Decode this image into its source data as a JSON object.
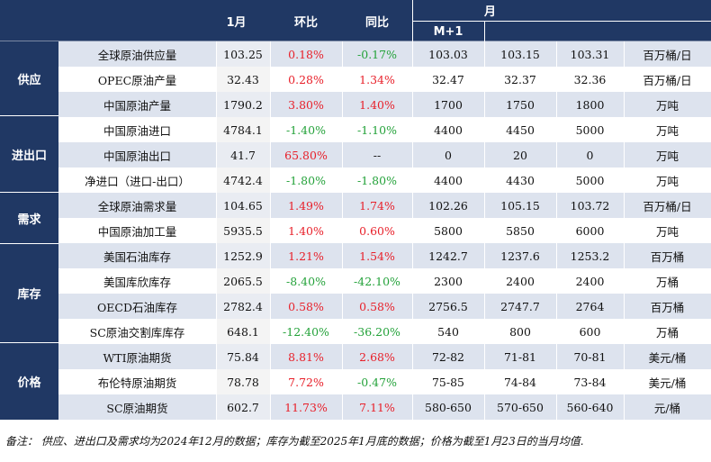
{
  "header": {
    "month": "1月",
    "mom": "环比",
    "yoy": "同比",
    "forecast_group": "月",
    "m1": "M+1"
  },
  "categories": [
    {
      "key": "supply",
      "label": "供应"
    },
    {
      "key": "trade",
      "label": "进出口"
    },
    {
      "key": "demand",
      "label": "需求"
    },
    {
      "key": "inventory",
      "label": "库存"
    },
    {
      "key": "price",
      "label": "价格"
    }
  ],
  "rows": [
    {
      "item": "全球原油供应量",
      "m": "103.25",
      "mom": "0.18%",
      "mom_color": "red",
      "yoy": "-0.17%",
      "yoy_color": "green",
      "f1": "103.03",
      "f2": "103.15",
      "f3": "103.31",
      "unit": "百万桶/日"
    },
    {
      "item": "OPEC原油产量",
      "m": "32.43",
      "mom": "0.28%",
      "mom_color": "red",
      "yoy": "1.34%",
      "yoy_color": "red",
      "f1": "32.47",
      "f2": "32.37",
      "f3": "32.36",
      "unit": "百万桶/日"
    },
    {
      "item": "中国原油产量",
      "m": "1790.2",
      "mom": "3.80%",
      "mom_color": "red",
      "yoy": "1.40%",
      "yoy_color": "red",
      "f1": "1700",
      "f2": "1750",
      "f3": "1800",
      "unit": "万吨"
    },
    {
      "item": "中国原油进口",
      "m": "4784.1",
      "mom": "-1.40%",
      "mom_color": "green",
      "yoy": "-1.10%",
      "yoy_color": "green",
      "f1": "4400",
      "f2": "4450",
      "f3": "5000",
      "unit": "万吨"
    },
    {
      "item": "中国原油出口",
      "m": "41.7",
      "mom": "65.80%",
      "mom_color": "red",
      "yoy": "--",
      "yoy_color": "plain",
      "f1": "0",
      "f2": "20",
      "f3": "0",
      "unit": "万吨"
    },
    {
      "item": "净进口（进口-出口）",
      "m": "4742.4",
      "mom": "-1.80%",
      "mom_color": "green",
      "yoy": "-1.80%",
      "yoy_color": "green",
      "f1": "4400",
      "f2": "4430",
      "f3": "5000",
      "unit": "万吨"
    },
    {
      "item": "全球原油需求量",
      "m": "104.65",
      "mom": "1.49%",
      "mom_color": "red",
      "yoy": "1.74%",
      "yoy_color": "red",
      "f1": "102.26",
      "f2": "105.15",
      "f3": "103.72",
      "unit": "百万桶/日"
    },
    {
      "item": "中国原油加工量",
      "m": "5935.5",
      "mom": "1.40%",
      "mom_color": "red",
      "yoy": "0.60%",
      "yoy_color": "red",
      "f1": "5800",
      "f2": "5850",
      "f3": "6000",
      "unit": "万吨"
    },
    {
      "item": "美国石油库存",
      "m": "1252.9",
      "mom": "1.21%",
      "mom_color": "red",
      "yoy": "1.54%",
      "yoy_color": "red",
      "f1": "1242.7",
      "f2": "1237.6",
      "f3": "1253.2",
      "unit": "百万桶"
    },
    {
      "item": "美国库欣库存",
      "m": "2065.5",
      "mom": "-8.40%",
      "mom_color": "green",
      "yoy": "-42.10%",
      "yoy_color": "green",
      "f1": "2300",
      "f2": "2400",
      "f3": "2400",
      "unit": "万桶"
    },
    {
      "item": "OECD石油库存",
      "m": "2782.4",
      "mom": "0.58%",
      "mom_color": "red",
      "yoy": "0.58%",
      "yoy_color": "red",
      "f1": "2756.5",
      "f2": "2747.7",
      "f3": "2764",
      "unit": "百万桶"
    },
    {
      "item": "SC原油交割库库存",
      "m": "648.1",
      "mom": "-12.40%",
      "mom_color": "green",
      "yoy": "-36.20%",
      "yoy_color": "green",
      "f1": "540",
      "f2": "800",
      "f3": "600",
      "unit": "万桶"
    },
    {
      "item": "WTI原油期货",
      "m": "75.84",
      "mom": "8.81%",
      "mom_color": "red",
      "yoy": "2.68%",
      "yoy_color": "red",
      "f1": "72-82",
      "f2": "71-81",
      "f3": "70-81",
      "unit": "美元/桶"
    },
    {
      "item": "布伦特原油期货",
      "m": "78.78",
      "mom": "7.72%",
      "mom_color": "red",
      "yoy": "-0.47%",
      "yoy_color": "green",
      "f1": "75-85",
      "f2": "74-84",
      "f3": "73-84",
      "unit": "美元/桶"
    },
    {
      "item": "SC原油期货",
      "m": "602.7",
      "mom": "11.73%",
      "mom_color": "red",
      "yoy": "7.11%",
      "yoy_color": "red",
      "f1": "580-650",
      "f2": "570-650",
      "f3": "560-640",
      "unit": "元/桶"
    }
  ],
  "colors": {
    "header_bg": "#203864",
    "row_shade": "#dde3ee",
    "up": "#e8202a",
    "down": "#24a23a"
  },
  "footnote": "备注：  供应、进出口及需求均为2024年12月的数据；库存为截至2025年1月底的数据；价格为截至1月23日的当月均值."
}
